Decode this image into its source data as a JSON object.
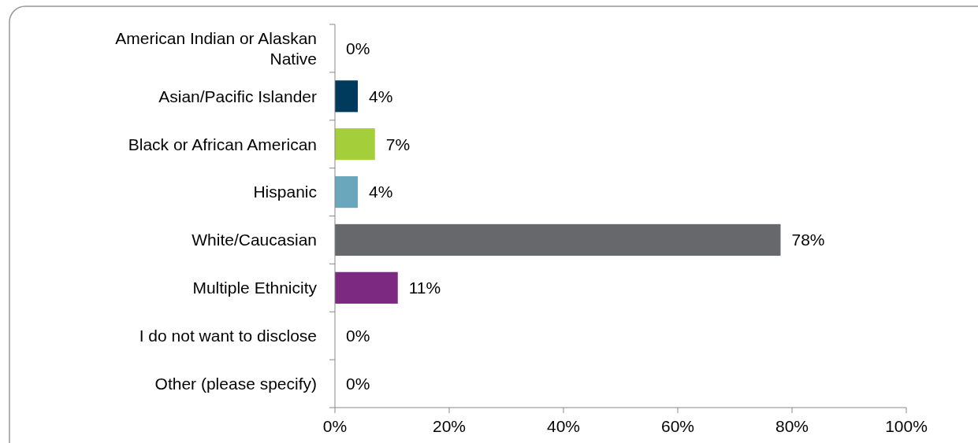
{
  "chart_data": {
    "type": "bar",
    "orientation": "horizontal",
    "categories": [
      "American Indian or Alaskan Native",
      "Asian/Pacific Islander",
      "Black or African American",
      "Hispanic",
      "White/Caucasian",
      "Multiple Ethnicity",
      "I do not want to disclose",
      "Other (please specify)"
    ],
    "values": [
      0,
      4,
      7,
      4,
      78,
      11,
      0,
      0
    ],
    "colors": [
      "#67686c",
      "#003a5d",
      "#a4cf3a",
      "#6aa6bc",
      "#67686c",
      "#7b2981",
      "#67686c",
      "#67686c"
    ],
    "value_labels": [
      "0%",
      "4%",
      "7%",
      "4%",
      "78%",
      "11%",
      "0%",
      "0%"
    ],
    "xlim": [
      0,
      100
    ],
    "xticks": [
      {
        "value": 0,
        "label": "0%"
      },
      {
        "value": 20,
        "label": "20%"
      },
      {
        "value": 40,
        "label": "40%"
      },
      {
        "value": 60,
        "label": "60%"
      },
      {
        "value": 80,
        "label": "80%"
      },
      {
        "value": 100,
        "label": "100%"
      }
    ],
    "grid": false
  }
}
